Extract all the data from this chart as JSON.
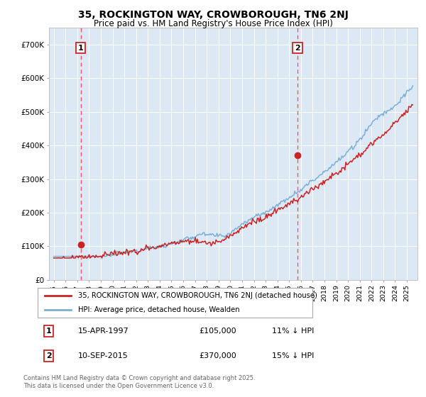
{
  "title": "35, ROCKINGTON WAY, CROWBOROUGH, TN6 2NJ",
  "subtitle": "Price paid vs. HM Land Registry's House Price Index (HPI)",
  "hpi_color": "#7bafd4",
  "price_color": "#cc2222",
  "vline_color": "#ff5555",
  "bg_color": "#dce9f5",
  "sale1_date": 1997.29,
  "sale1_price": 105000,
  "sale2_date": 2015.71,
  "sale2_price": 370000,
  "ylim": [
    0,
    750000
  ],
  "xlim_start": 1994.6,
  "xlim_end": 2025.9,
  "legend1": "35, ROCKINGTON WAY, CROWBOROUGH, TN6 2NJ (detached house)",
  "legend2": "HPI: Average price, detached house, Wealden",
  "annotation1_label": "1",
  "annotation1_date": "15-APR-1997",
  "annotation1_price": "£105,000",
  "annotation1_hpi": "11% ↓ HPI",
  "annotation2_label": "2",
  "annotation2_date": "10-SEP-2015",
  "annotation2_price": "£370,000",
  "annotation2_hpi": "15% ↓ HPI",
  "footer": "Contains HM Land Registry data © Crown copyright and database right 2025.\nThis data is licensed under the Open Government Licence v3.0."
}
